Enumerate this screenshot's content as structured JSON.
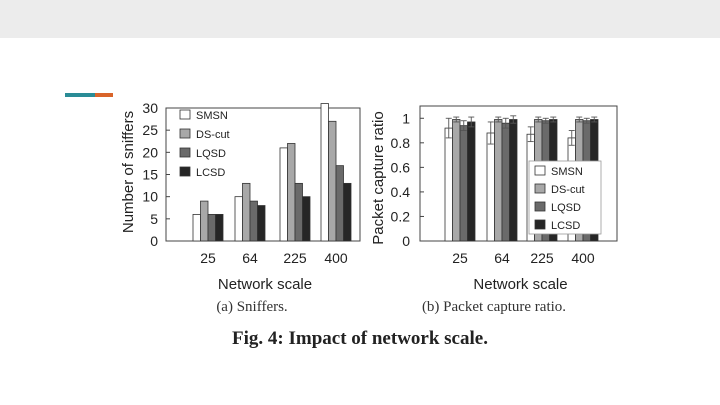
{
  "slide": {
    "accent_colors": [
      "#2a8c96",
      "#d9642a"
    ],
    "caption": "Fig. 4: Impact of network scale."
  },
  "chart_data": [
    {
      "type": "bar",
      "title": "(a) Sniffers.",
      "xlabel": "Network scale",
      "ylabel": "Number of sniffers",
      "categories": [
        "25",
        "64",
        "225",
        "400"
      ],
      "ylim": [
        0,
        30
      ],
      "yticks": [
        "0",
        "5",
        "10",
        "15",
        "20",
        "25",
        "30"
      ],
      "legend_position": "top-left",
      "series": [
        {
          "name": "SMSN",
          "color": "#ffffff",
          "values": [
            6,
            10,
            21,
            31
          ]
        },
        {
          "name": "DS-cut",
          "color": "#a8a8a8",
          "values": [
            9,
            13,
            22,
            27
          ]
        },
        {
          "name": "LQSD",
          "color": "#6a6a6a",
          "values": [
            6,
            9,
            13,
            17
          ]
        },
        {
          "name": "LCSD",
          "color": "#262626",
          "values": [
            6,
            8,
            10,
            13
          ]
        }
      ]
    },
    {
      "type": "bar",
      "title": "(b) Packet capture ratio.",
      "xlabel": "Network scale",
      "ylabel": "Packet capture ratio",
      "categories": [
        "25",
        "64",
        "225",
        "400"
      ],
      "ylim": [
        0,
        1.1
      ],
      "yticks": [
        "0",
        "0.2",
        "0.4",
        "0.6",
        "0.8",
        "1"
      ],
      "legend_position": "bottom-right",
      "error_bars": true,
      "series": [
        {
          "name": "SMSN",
          "color": "#ffffff",
          "values": [
            0.92,
            0.88,
            0.87,
            0.84
          ],
          "errors": [
            0.08,
            0.09,
            0.06,
            0.06
          ]
        },
        {
          "name": "DS-cut",
          "color": "#a8a8a8",
          "values": [
            0.99,
            0.99,
            0.99,
            0.99
          ],
          "errors": [
            0.02,
            0.02,
            0.02,
            0.02
          ]
        },
        {
          "name": "LQSD",
          "color": "#6a6a6a",
          "values": [
            0.94,
            0.96,
            0.98,
            0.98
          ],
          "errors": [
            0.04,
            0.04,
            0.02,
            0.02
          ]
        },
        {
          "name": "LCSD",
          "color": "#262626",
          "values": [
            0.97,
            0.99,
            0.99,
            0.99
          ],
          "errors": [
            0.04,
            0.03,
            0.02,
            0.02
          ]
        }
      ]
    }
  ]
}
